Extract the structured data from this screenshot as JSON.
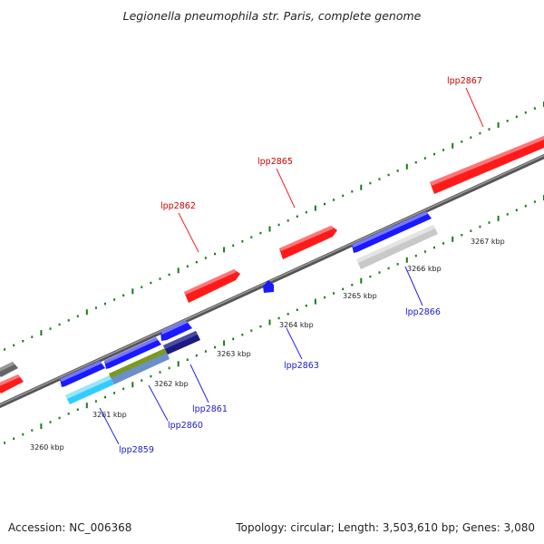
{
  "title": "Legionella pneumophila str. Paris, complete genome",
  "footer": {
    "accession": "Accession: NC_006368",
    "summary": "Topology: circular; Length: 3,503,610 bp; Genes: 3,080"
  },
  "colors": {
    "forward_gene": "#ff1a1a",
    "reverse_gene": "#1a1aff",
    "label_forward": "#cc0000",
    "label_reverse": "#1a1acc",
    "backbone": "#777777",
    "tick": "#1a7a1a",
    "grey_feature": "#c8c8c8",
    "navy_feature": "#1a1a80",
    "olive_feature": "#7a9a20",
    "cyan_feature": "#33ccff"
  },
  "ruler_labels": [
    "3260 kbp",
    "3261 kbp",
    "3262 kbp",
    "3263 kbp",
    "3264 kbp",
    "3265 kbp",
    "3266 kbp",
    "3267 kbp"
  ],
  "genes_forward": [
    {
      "id": "lpp2862"
    },
    {
      "id": "lpp2865"
    },
    {
      "id": "lpp2867"
    }
  ],
  "genes_reverse": [
    {
      "id": "lpp2859"
    },
    {
      "id": "lpp2860"
    },
    {
      "id": "lpp2861"
    },
    {
      "id": "lpp2863"
    },
    {
      "id": "lpp2866"
    }
  ]
}
